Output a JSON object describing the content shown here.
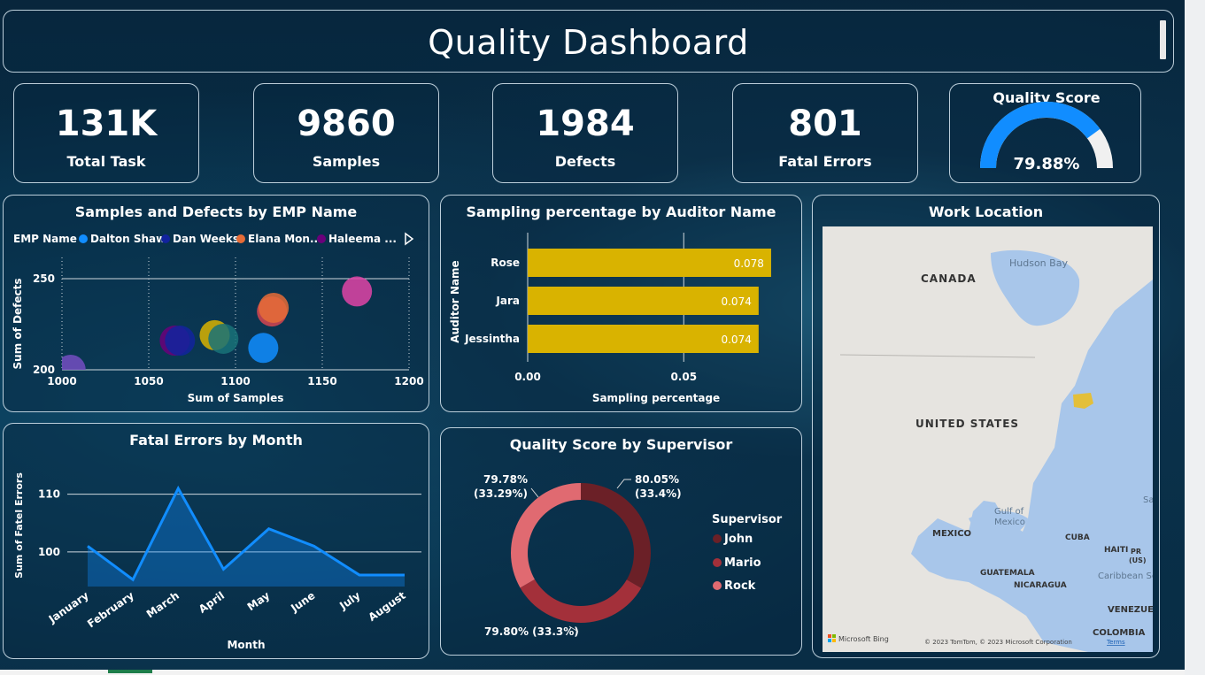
{
  "dashboard": {
    "title": "Quality Dashboard"
  },
  "kpis": [
    {
      "value": "131K",
      "label": "Total Task"
    },
    {
      "value": "9860",
      "label": "Samples"
    },
    {
      "value": "1984",
      "label": "Defects"
    },
    {
      "value": "801",
      "label": "Fatal Errors"
    }
  ],
  "gauge": {
    "title": "Quality Score",
    "value_label": "79.88%",
    "value": 0.7988,
    "fill_color": "#118DFF",
    "track_color": "#F0F0F0"
  },
  "scatter_panel": {
    "title": "Samples and Defects by EMP Name",
    "legend_title": "EMP Name",
    "legend": [
      {
        "name": "Dalton Shaw",
        "color": "#118DFF"
      },
      {
        "name": "Dan Weeks",
        "color": "#12239E"
      },
      {
        "name": "Elana Mon...",
        "color": "#E66C37"
      },
      {
        "name": "Haleema ...",
        "color": "#6B007B"
      }
    ]
  },
  "bar_panel": {
    "title": "Sampling percentage by Auditor Name"
  },
  "line_panel": {
    "title": "Fatal Errors by Month"
  },
  "donut_panel": {
    "title": "Quality Score by Supervisor",
    "legend_title": "Supervisor",
    "legend": [
      {
        "name": "John",
        "color": "#6B2027"
      },
      {
        "name": "Mario",
        "color": "#A3303A"
      },
      {
        "name": "Rock",
        "color": "#E06A71"
      }
    ],
    "labels": [
      "80.05%",
      "(33.4%)",
      "79.80% (33.3%)",
      "79.78%",
      "(33.29%)"
    ]
  },
  "map_panel": {
    "title": "Work Location",
    "labels": {
      "canada": "CANADA",
      "hudson": "Hudson Bay",
      "usa": "UNITED STATES",
      "mexico": "MEXICO",
      "gulf1": "Gulf of",
      "gulf2": "Mexico",
      "cuba": "CUBA",
      "haiti": "HAITI",
      "pr1": "PR",
      "pr2": "(US)",
      "guatemala": "GUATEMALA",
      "nicaragua": "NICARAGUA",
      "caribbean": "Caribbean Sea",
      "venezuela": "VENEZUE",
      "colombia": "COLOMBIA",
      "sa": "Sa",
      "bing": "Microsoft Bing",
      "copyright": "© 2023 TomTom, © 2023 Microsoft Corporation",
      "terms": "Terms"
    },
    "highlight_color": "#E3BF3A"
  },
  "chart_data": [
    {
      "type": "scatter",
      "title": "Samples and Defects by EMP Name",
      "xlabel": "Sum of Samples",
      "ylabel": "Sum of Defects",
      "xlim": [
        1000,
        1200
      ],
      "ylim": [
        200,
        250
      ],
      "xticks": [
        1000,
        1050,
        1100,
        1150,
        1200
      ],
      "yticks": [
        200,
        250
      ],
      "grid": true,
      "points": [
        {
          "x": 1005,
          "y": 200,
          "color": "#744EC2"
        },
        {
          "x": 1065,
          "y": 216,
          "color": "#6B007B"
        },
        {
          "x": 1068,
          "y": 216,
          "color": "#12239E"
        },
        {
          "x": 1088,
          "y": 219,
          "color": "#D9B300"
        },
        {
          "x": 1093,
          "y": 217,
          "color": "#197278"
        },
        {
          "x": 1116,
          "y": 212,
          "color": "#118DFF"
        },
        {
          "x": 1121,
          "y": 232,
          "color": "#D64550"
        },
        {
          "x": 1122,
          "y": 234,
          "color": "#E66C37"
        },
        {
          "x": 1170,
          "y": 243,
          "color": "#E044A7"
        }
      ]
    },
    {
      "type": "bar",
      "orientation": "horizontal",
      "title": "Sampling percentage by Auditor Name",
      "xlabel": "Sampling percentage",
      "ylabel": "Auditor Name",
      "categories": [
        "Rose",
        "Jara",
        "Jessintha"
      ],
      "values": [
        0.078,
        0.074,
        0.074
      ],
      "value_labels": [
        "0.078",
        "0.074",
        "0.074"
      ],
      "xlim": [
        0,
        0.08
      ],
      "xticks": [
        0,
        0.05
      ],
      "xtick_labels": [
        "0.00",
        "0.05"
      ],
      "color": "#D9B300"
    },
    {
      "type": "area",
      "title": "Fatal Errors by Month",
      "xlabel": "Month",
      "ylabel": "Sum of Fatel Errors",
      "categories": [
        "January",
        "February",
        "March",
        "April",
        "May",
        "June",
        "July",
        "August"
      ],
      "values": [
        101,
        95.2,
        111,
        97,
        104,
        101,
        96,
        96
      ],
      "ylim": [
        94,
        113
      ],
      "yticks": [
        100,
        110
      ],
      "color": "#118DFF"
    },
    {
      "type": "pie",
      "donut": true,
      "title": "Quality Score by Supervisor",
      "categories": [
        "John",
        "Mario",
        "Rock"
      ],
      "values": [
        80.05,
        79.8,
        79.78
      ],
      "shares": [
        33.4,
        33.3,
        33.29
      ],
      "colors": [
        "#6B2027",
        "#A3303A",
        "#E06A71"
      ]
    }
  ]
}
